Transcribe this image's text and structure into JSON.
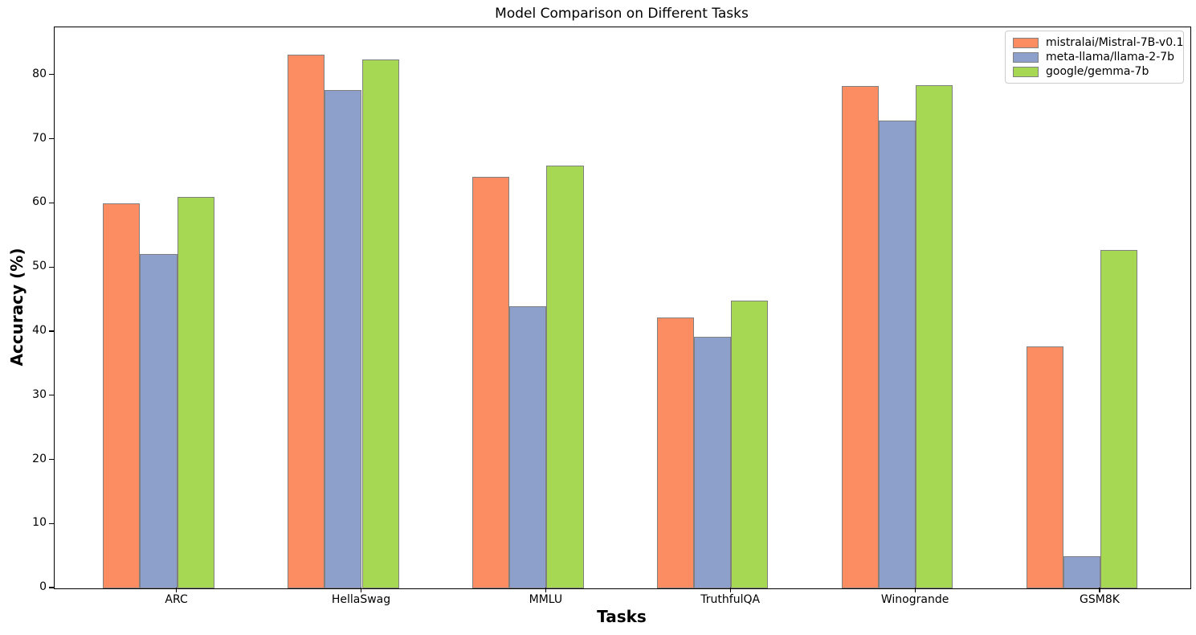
{
  "chart_data": {
    "type": "bar",
    "title": "Model Comparison on Different Tasks",
    "xlabel": "Tasks",
    "ylabel": "Accuracy (%)",
    "categories": [
      "ARC",
      "HellaSwag",
      "MMLU",
      "TruthfulQA",
      "Winogrande",
      "GSM8K"
    ],
    "series": [
      {
        "name": "mistralai/Mistral-7B-v0.1",
        "color": "#fc8d62",
        "values": [
          60.0,
          83.3,
          64.2,
          42.2,
          78.4,
          37.8
        ]
      },
      {
        "name": "meta-llama/llama-2-7b",
        "color": "#8da0cb",
        "values": [
          52.1,
          77.7,
          44.0,
          39.3,
          73.0,
          5.0
        ]
      },
      {
        "name": "google/gemma-7b",
        "color": "#a6d854",
        "values": [
          61.1,
          82.5,
          66.0,
          44.9,
          78.5,
          52.8
        ]
      }
    ],
    "yticks": [
      0,
      10,
      20,
      30,
      40,
      50,
      60,
      70,
      80
    ],
    "ylim": [
      0,
      87.5
    ],
    "bar_edge_color": "#808080",
    "axis_color": "#000000",
    "legend_position": "upper right",
    "grid": false
  }
}
